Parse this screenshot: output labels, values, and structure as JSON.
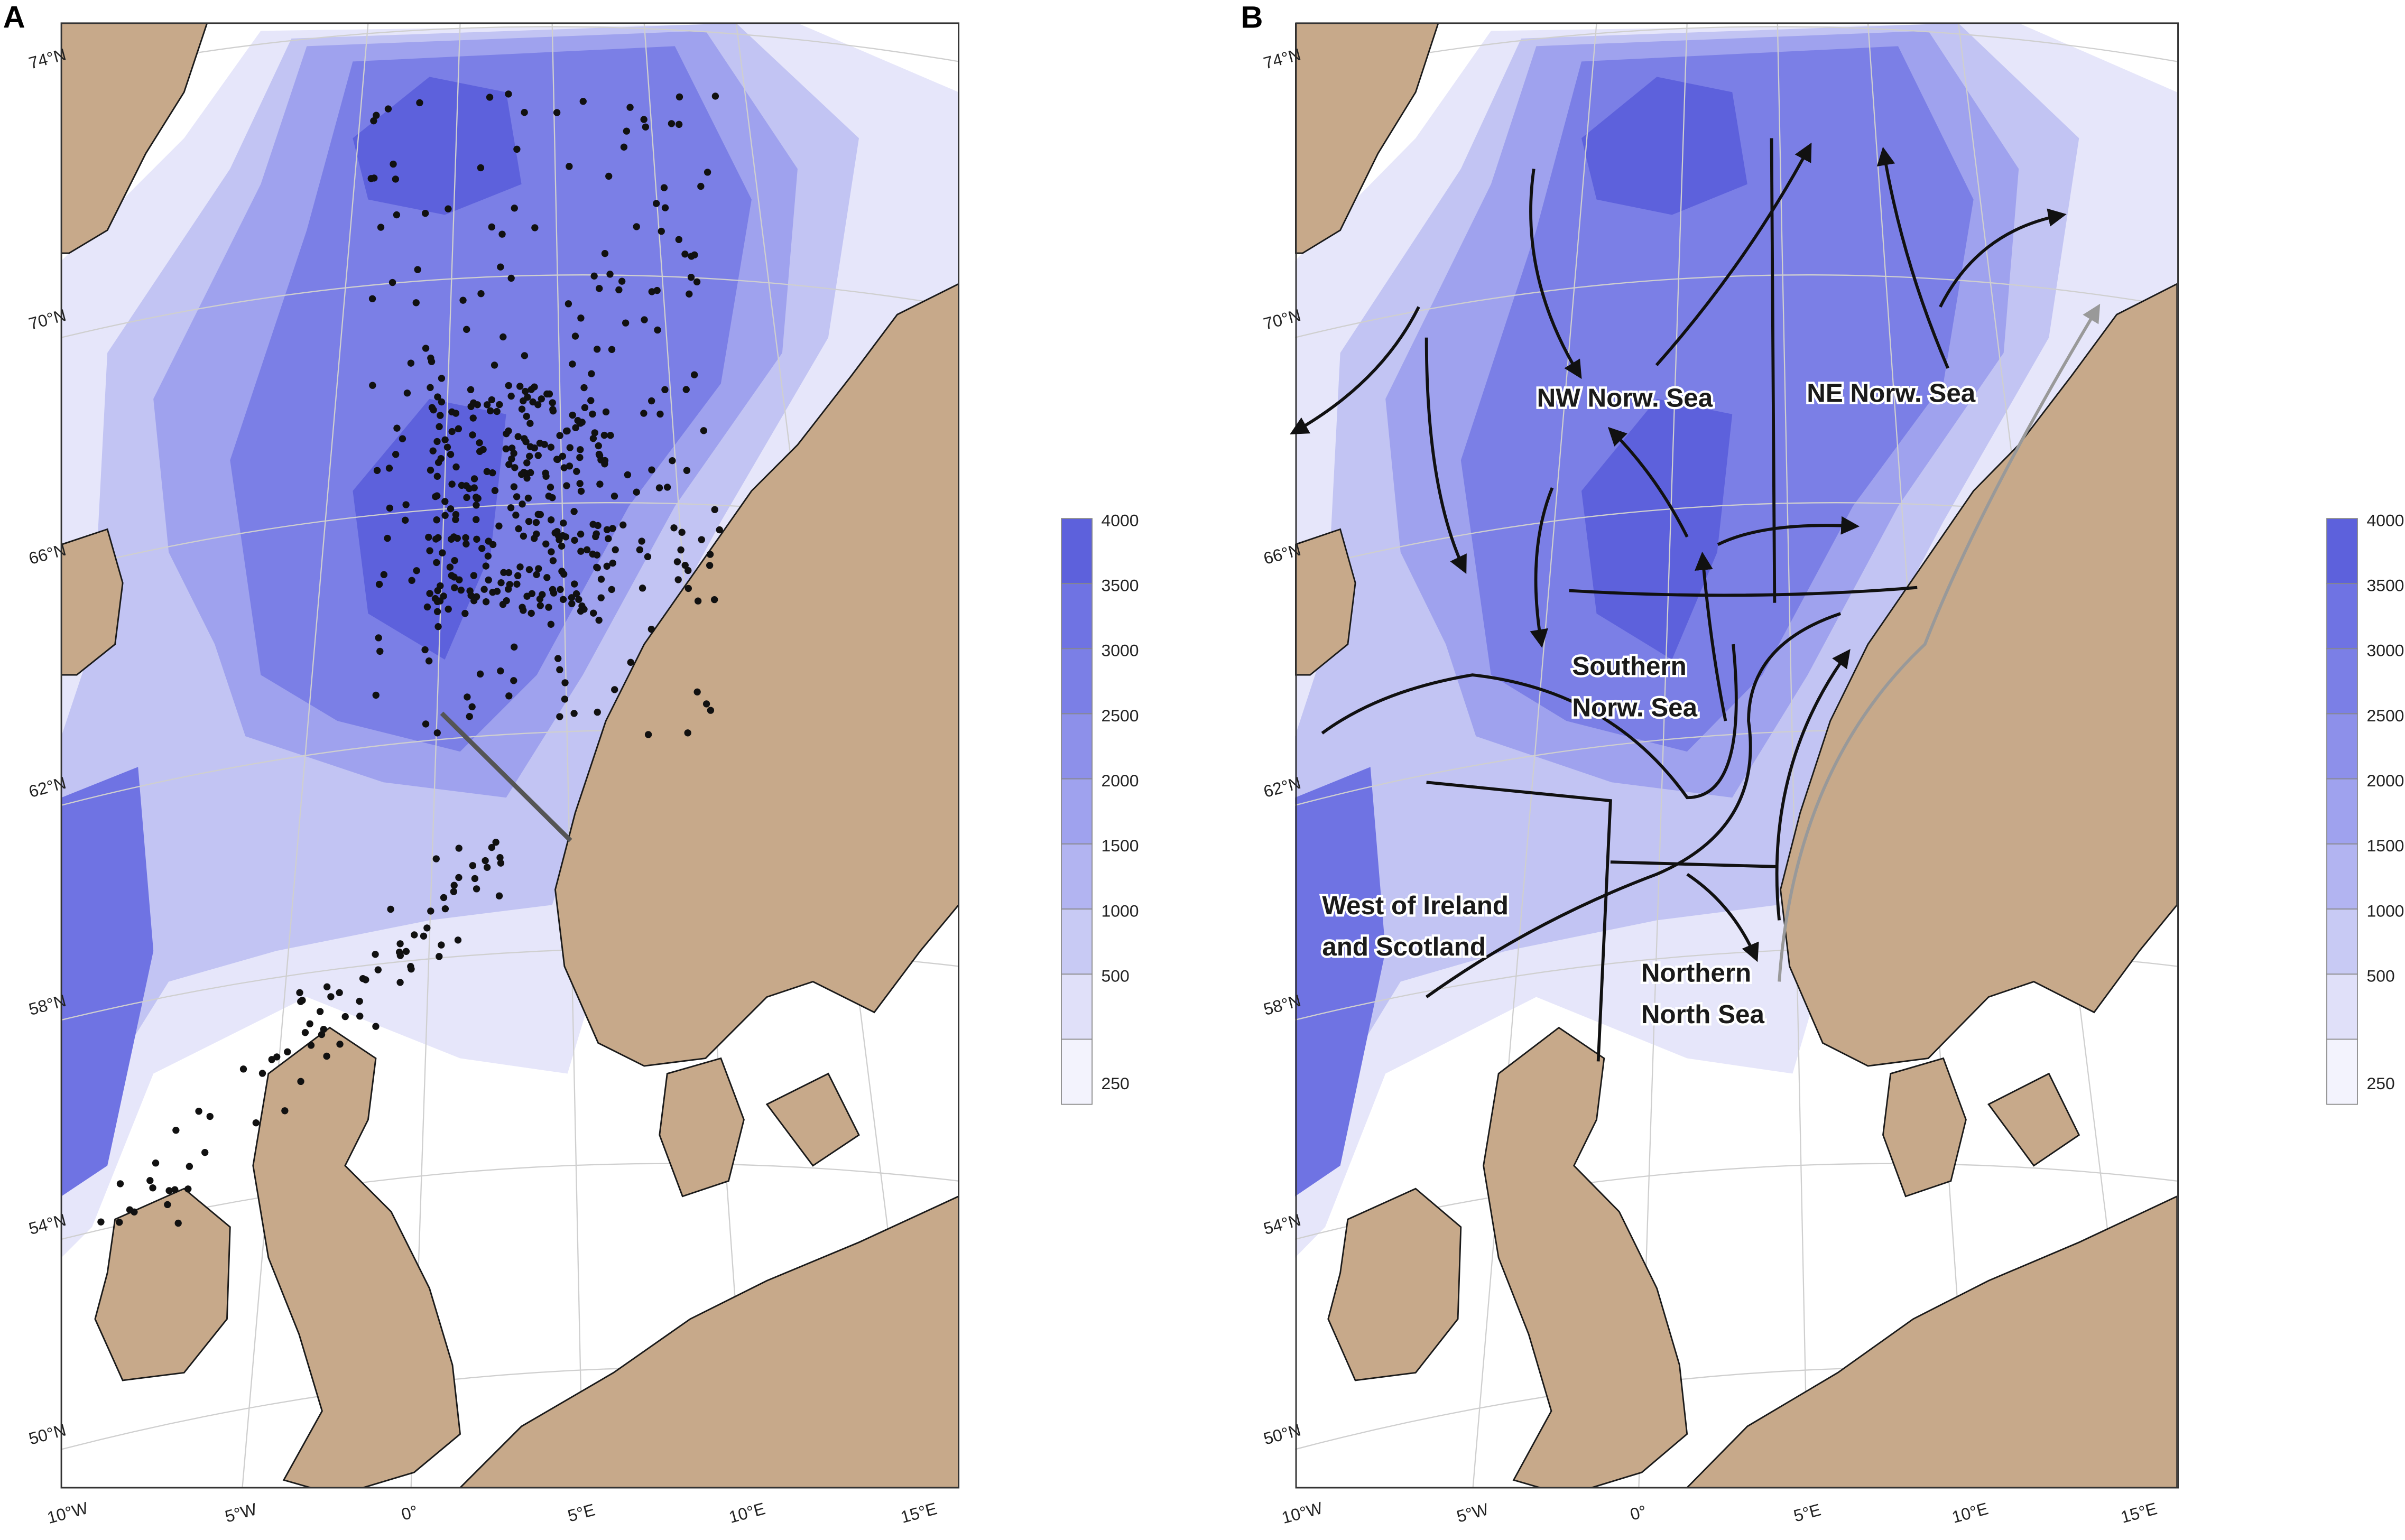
{
  "panels": [
    {
      "label": "A",
      "lat_labels": [
        "74°N",
        "70°N",
        "66°N",
        "62°N",
        "58°N",
        "54°N",
        "50°N"
      ],
      "lon_labels": [
        "10°W",
        "5°W",
        "0°",
        "5°E",
        "10°E",
        "15°E"
      ],
      "colorbar_ticks": [
        4000,
        3500,
        3000,
        2500,
        2000,
        1500,
        1000,
        500,
        250
      ]
    },
    {
      "label": "B",
      "lat_labels": [
        "74°N",
        "70°N",
        "66°N",
        "62°N",
        "58°N",
        "54°N",
        "50°N"
      ],
      "lon_labels": [
        "10°W",
        "5°W",
        "0°",
        "5°E",
        "10°E",
        "15°E"
      ],
      "colorbar_ticks": [
        4000,
        3500,
        3000,
        2500,
        2000,
        1500,
        1000,
        500,
        250
      ],
      "regions": [
        {
          "lines": [
            "NW Norw. Sea"
          ]
        },
        {
          "lines": [
            "NE Norw. Sea"
          ]
        },
        {
          "lines": [
            "Southern",
            "Norw. Sea"
          ]
        },
        {
          "lines": [
            "West of Ireland",
            "and Scotland"
          ]
        },
        {
          "lines": [
            "Northern",
            "North Sea"
          ]
        }
      ]
    }
  ]
}
